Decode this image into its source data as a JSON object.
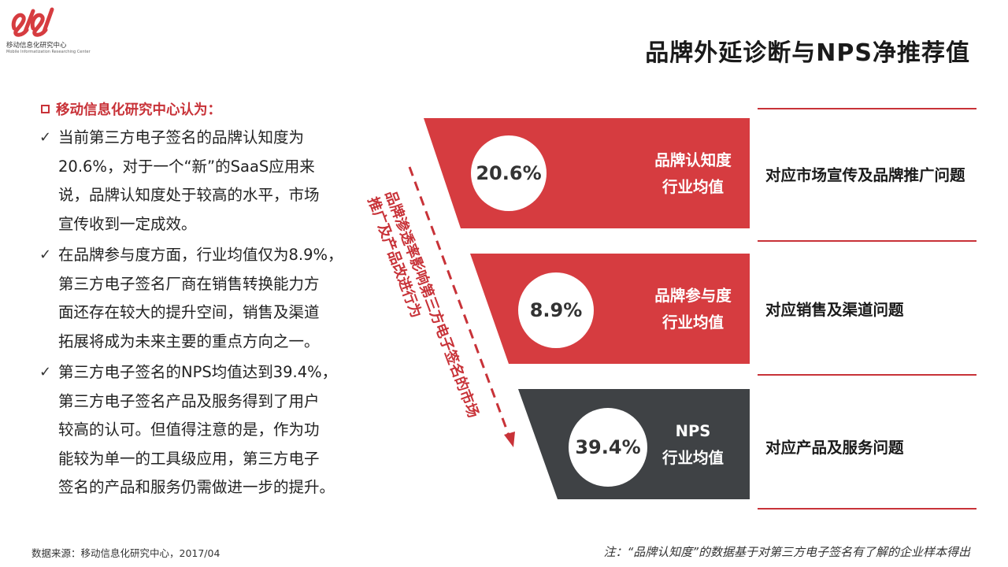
{
  "logo": {
    "name_cn": "移动信息化研究中心",
    "name_en": "Mobile Informatization Researching Center"
  },
  "title": "品牌外延诊断与NPS净推荐值",
  "left": {
    "heading": "移动信息化研究中心认为：",
    "bullets": [
      [
        "当前第三方电子签名的品牌认知度为",
        "20.6%，对于一个“新”的SaaS应用来",
        "说，品牌认知度处于较高的水平，市场",
        "宣传收到一定成效。"
      ],
      [
        "在品牌参与度方面，行业均值仅为8.9%，",
        "第三方电子签名厂商在销售转换能力方",
        "面还存在较大的提升空间，销售及渠道",
        "拓展将成为未来主要的重点方向之一。"
      ],
      [
        "第三方电子签名的NPS均值达到39.4%，",
        "第三方电子签名产品及服务得到了用户",
        "较高的认可。但值得注意的是，作为功",
        "能较为单一的工具级应用，第三方电子",
        "签名的产品和服务仍需做进一步的提升。"
      ]
    ]
  },
  "funnel": {
    "side_text": [
      "品牌渗透率影响第三方电子签名的市场",
      "推广及产品改进行为"
    ],
    "tiers": [
      {
        "value": "20.6%",
        "label1": "品牌认知度",
        "label2": "行业均值",
        "note": "对应市场宣传及品牌推广问题",
        "color": "#d63c40"
      },
      {
        "value": "8.9%",
        "label1": "品牌参与度",
        "label2": "行业均值",
        "note": "对应销售及渠道问题",
        "color": "#d63c40"
      },
      {
        "value": "39.4%",
        "label1": "NPS",
        "label2": "行业均值",
        "note": "对应产品及服务问题",
        "color": "#3f4245"
      }
    ]
  },
  "footer": {
    "source": "数据来源：移动信息化研究中心，2017/04",
    "note": "注：“品牌认知度”的数据基于对第三方电子签名有了解的企业样本得出"
  }
}
